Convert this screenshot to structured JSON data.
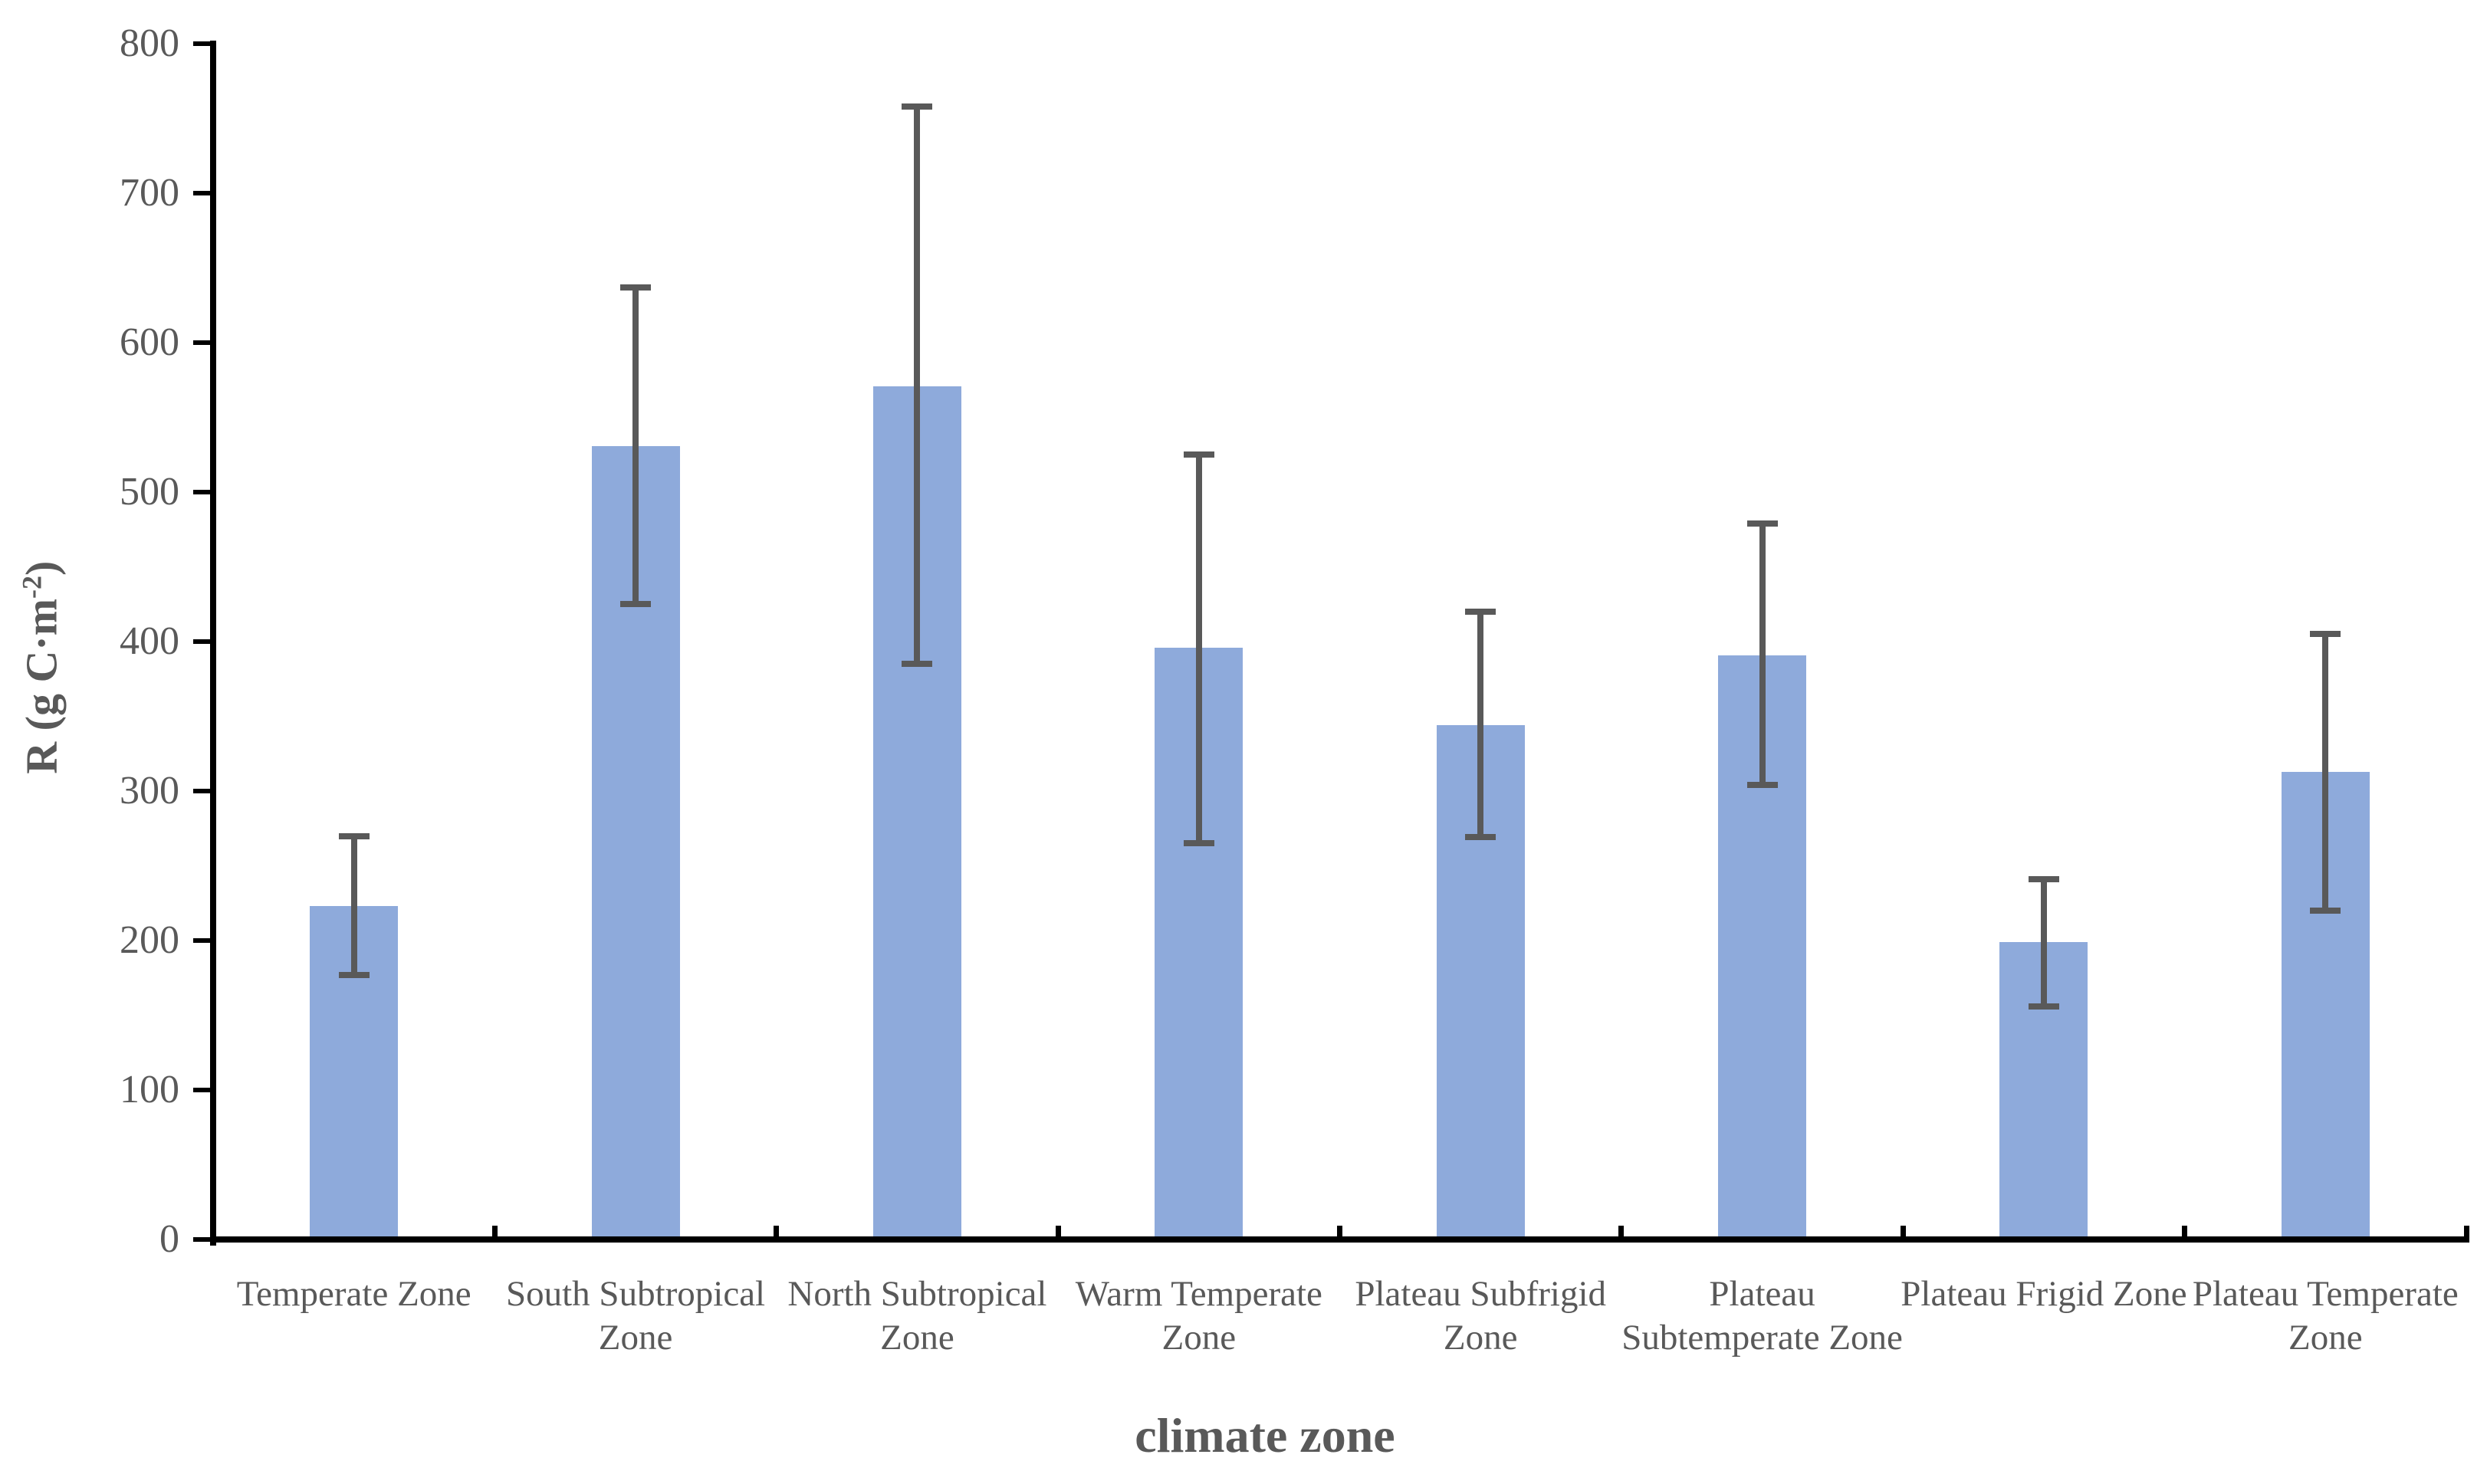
{
  "chart_data": {
    "type": "bar",
    "title": "",
    "xlabel": "climate zone",
    "ylabel": "R (g C·m⁻²)",
    "ylabel_parts": {
      "prefix": "R (g C·m",
      "superscript": "-2",
      "suffix": ")"
    },
    "categories": [
      "Temperate Zone",
      "South Subtropical Zone",
      "North Subtropical Zone",
      "Warm Temperate Zone",
      "Plateau Subfrigid Zone",
      "Plateau Subtemperate Zone",
      "Plateau Frigid Zone",
      "Plateau Temperate Zone"
    ],
    "category_label_lines": [
      [
        "Temperate Zone"
      ],
      [
        "South Subtropical",
        "Zone"
      ],
      [
        "North Subtropical",
        "Zone"
      ],
      [
        "Warm Temperate",
        "Zone"
      ],
      [
        "Plateau Subfrigid",
        "Zone"
      ],
      [
        "Plateau",
        "Subtemperate Zone"
      ],
      [
        "Plateau Frigid Zone"
      ],
      [
        "Plateau Temperate",
        "Zone"
      ]
    ],
    "series": [
      {
        "name": "R",
        "values": [
          223,
          531,
          571,
          396,
          344,
          391,
          199,
          313
        ],
        "error_low": [
          177,
          425,
          385,
          265,
          269,
          304,
          156,
          220
        ],
        "error_high": [
          270,
          637,
          758,
          525,
          420,
          479,
          241,
          405
        ]
      }
    ],
    "ylim": [
      0,
      800
    ],
    "yticks": [
      0,
      100,
      200,
      300,
      400,
      500,
      600,
      700,
      800
    ],
    "grid": false,
    "legend": false,
    "colors": {
      "bar_fill": "#8EAADB",
      "error_bar": "#595959",
      "axis_line": "#000000",
      "tick_label": "#595959",
      "axis_title_color": "#595959",
      "background": "#FFFFFF"
    }
  }
}
